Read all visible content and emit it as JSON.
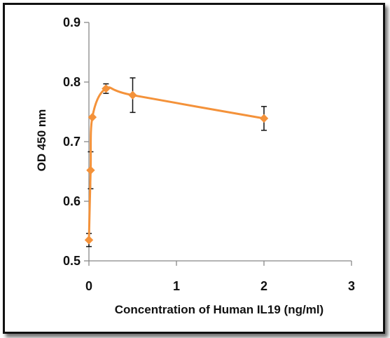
{
  "chart_data": {
    "type": "line",
    "title": "",
    "xlabel": "Concentration of Human IL19 (ng/ml)",
    "ylabel": "OD 450 nm",
    "xlim": [
      0,
      3
    ],
    "ylim": [
      0.5,
      0.9
    ],
    "xticks": [
      "0",
      "1",
      "2",
      "3"
    ],
    "yticks": [
      "0.5",
      "0.6",
      "0.7",
      "0.8",
      "0.9"
    ],
    "grid": false,
    "legend": "none",
    "series": [
      {
        "color": "#f4923a",
        "marker": "diamond",
        "smooth": true,
        "x": [
          0.0,
          0.0195,
          0.039,
          0.195,
          0.5,
          2.0
        ],
        "y": [
          0.535,
          0.652,
          0.741,
          0.789,
          0.778,
          0.739
        ],
        "error": [
          0.011,
          0.031,
          null,
          0.008,
          0.029,
          0.02
        ]
      }
    ]
  }
}
